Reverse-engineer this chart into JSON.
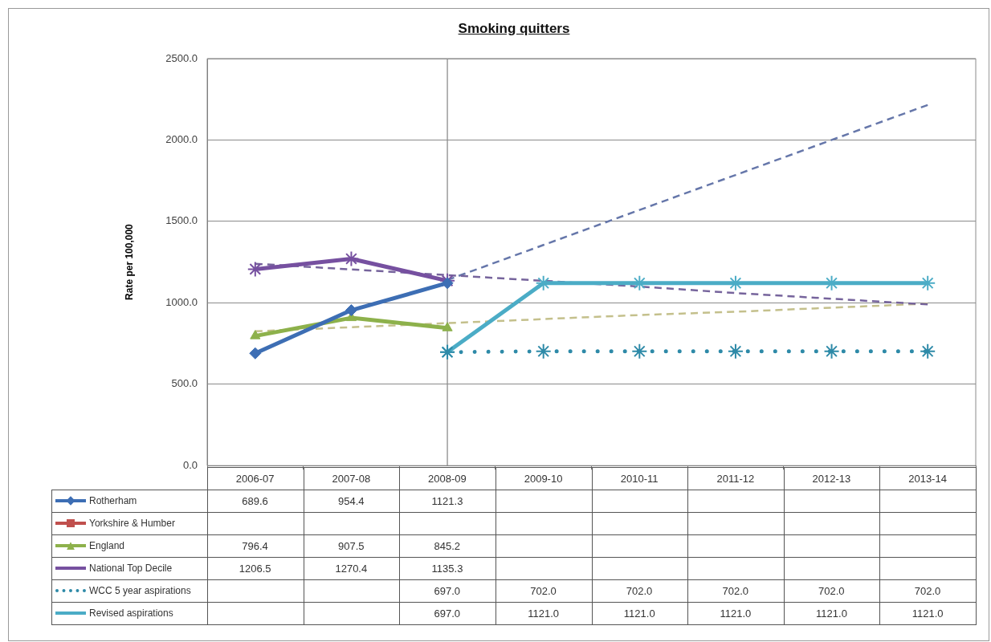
{
  "chart_data": {
    "type": "line",
    "title": "Smoking quitters",
    "ylabel": "Rate per 100,000",
    "categories": [
      "2006-07",
      "2007-08",
      "2008-09",
      "2009-10",
      "2010-11",
      "2011-12",
      "2012-13",
      "2013-14"
    ],
    "series": [
      {
        "name": "Rotherham",
        "color": "#3d6eb4",
        "marker": "diamond",
        "values": [
          689.6,
          954.4,
          1121.3,
          null,
          null,
          null,
          null,
          null
        ],
        "value_labels": [
          "689.6",
          "954.4",
          "1121.3",
          null,
          null,
          null,
          null,
          null
        ]
      },
      {
        "name": "Yorkshire & Humber",
        "color": "#c0504d",
        "marker": "square",
        "values": [
          null,
          null,
          null,
          null,
          null,
          null,
          null,
          null
        ]
      },
      {
        "name": "England",
        "color": "#8db14b",
        "marker": "triangle",
        "values": [
          796.4,
          907.5,
          845.2,
          null,
          null,
          null,
          null,
          null
        ],
        "value_labels": [
          "796.4",
          "907.5",
          "845.2",
          null,
          null,
          null,
          null,
          null
        ]
      },
      {
        "name": "National Top Decile",
        "color": "#7650a0",
        "marker": "cross",
        "values": [
          1206.5,
          1270.4,
          1135.3,
          null,
          null,
          null,
          null,
          null
        ],
        "value_labels": [
          "1206.5",
          "1270.4",
          "1135.3",
          null,
          null,
          null,
          null,
          null
        ]
      },
      {
        "name": "WCC 5 year aspirations",
        "color": "#2e8aa8",
        "marker": "cross",
        "line_style": "dotted",
        "values": [
          null,
          null,
          697.0,
          702.0,
          702.0,
          702.0,
          702.0,
          702.0
        ],
        "value_labels": [
          null,
          null,
          "697.0",
          "702.0",
          "702.0",
          "702.0",
          "702.0",
          "702.0"
        ]
      },
      {
        "name": "Revised aspirations",
        "color": "#4bacc6",
        "marker": "cross",
        "values": [
          null,
          null,
          697.0,
          1121.0,
          1121.0,
          1121.0,
          1121.0,
          1121.0
        ],
        "value_labels": [
          null,
          null,
          "697.0",
          "1121.0",
          "1121.0",
          "1121.0",
          "1121.0",
          "1121.0"
        ]
      },
      {
        "color": "#76649c",
        "line_style": "dashed",
        "marker": "none",
        "values": [
          1240,
          1205,
          1170,
          1135,
          1100,
          1060,
          1025,
          990
        ]
      },
      {
        "color": "#c4c08c",
        "line_style": "dashed",
        "marker": "none",
        "values": [
          825,
          850,
          875,
          900,
          925,
          945,
          970,
          995
        ]
      },
      {
        "color": "#6677aa",
        "line_style": "dashed",
        "marker": "none",
        "values": [
          null,
          null,
          1140,
          1355,
          1570,
          1785,
          2000,
          2215
        ]
      }
    ],
    "ylim": [
      0,
      2500
    ],
    "yticks": [
      {
        "value": 0,
        "label": "0.0"
      },
      {
        "value": 500,
        "label": "500.0"
      },
      {
        "value": 1000,
        "label": "1000.0"
      },
      {
        "value": 1500,
        "label": "1500.0"
      },
      {
        "value": 2000,
        "label": "2000.0"
      },
      {
        "value": 2500,
        "label": "2500.0"
      }
    ],
    "grid": "y",
    "legend": "bottom left",
    "ref_lines": [
      {
        "axis": "x",
        "value": "2008-09",
        "color": "#8c8c8c"
      }
    ]
  }
}
